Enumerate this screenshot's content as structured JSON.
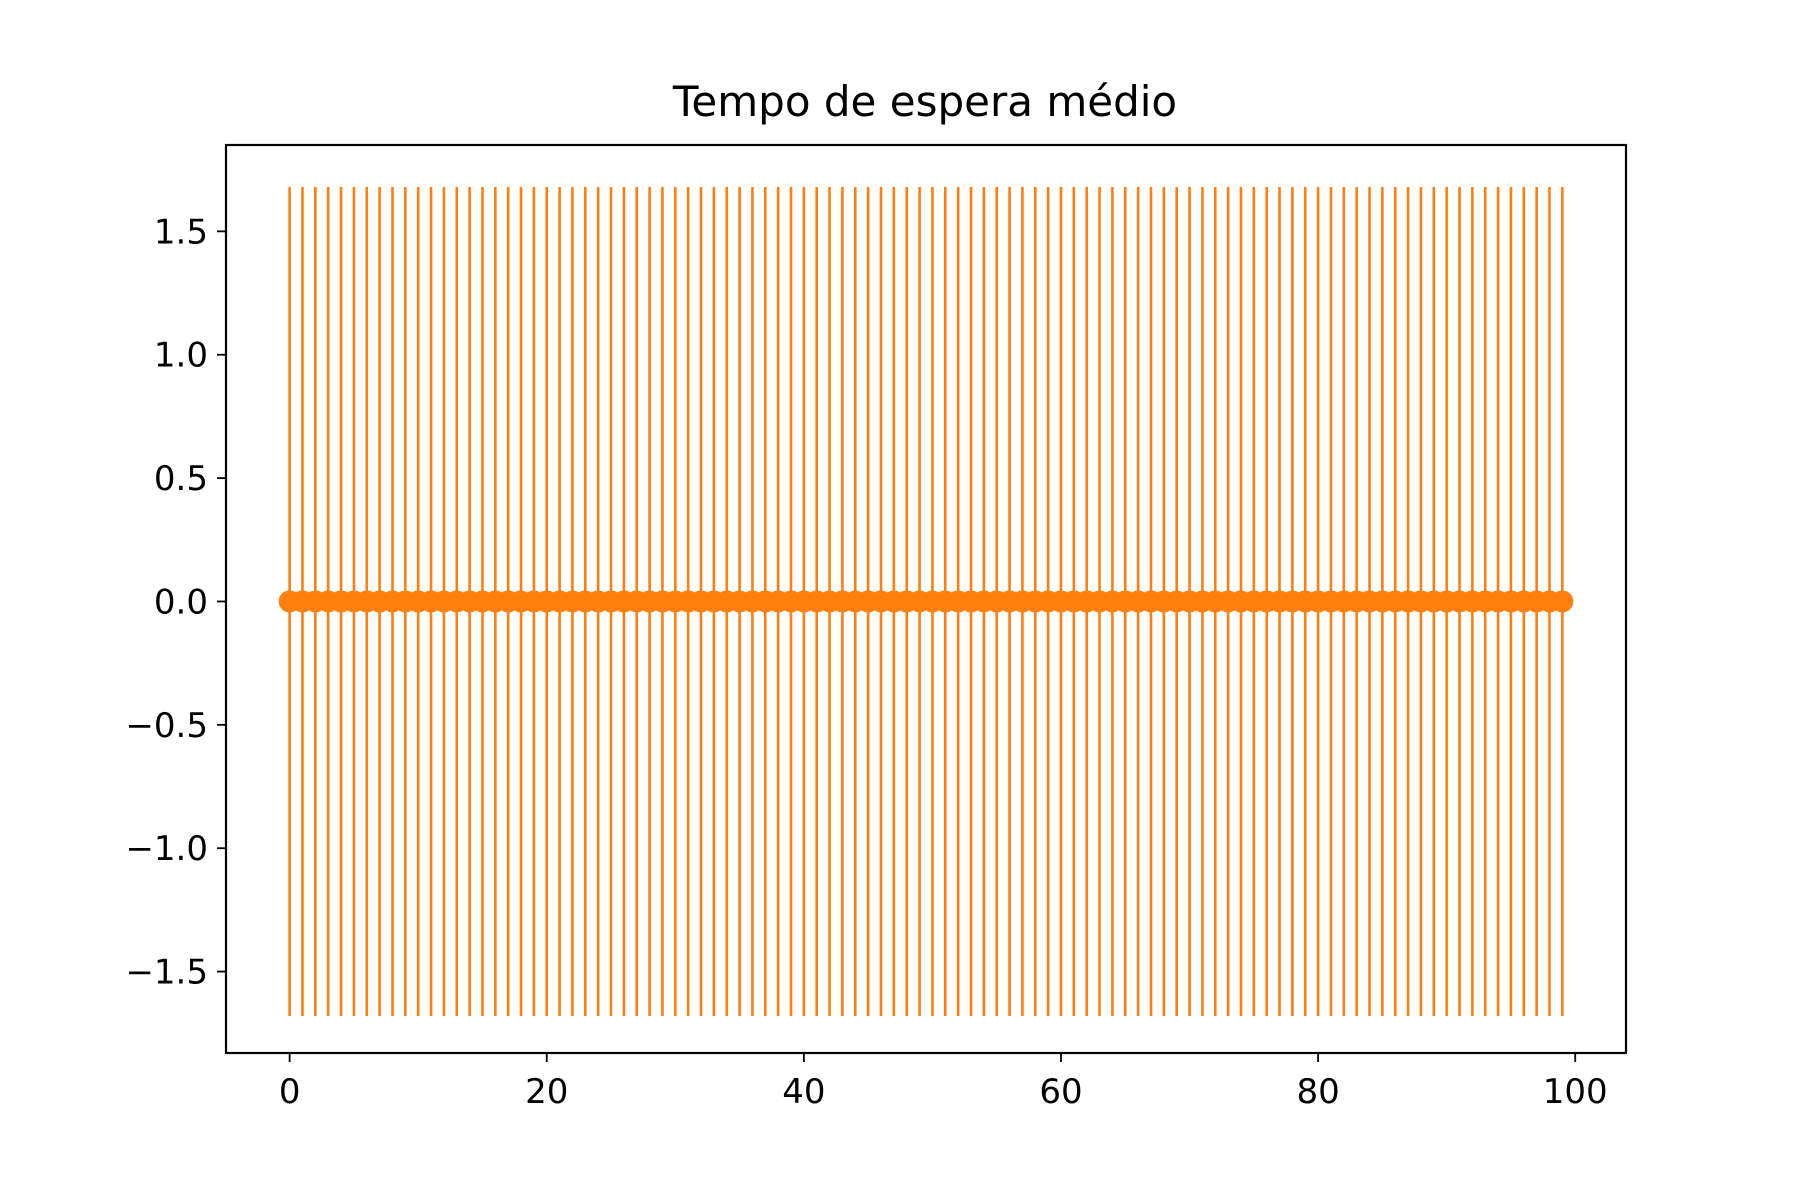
{
  "chart_data": {
    "type": "errorbar",
    "title": "Tempo de espera médio",
    "xlabel": "",
    "ylabel": "",
    "x": [
      0,
      1,
      2,
      3,
      4,
      5,
      6,
      7,
      8,
      9,
      10,
      11,
      12,
      13,
      14,
      15,
      16,
      17,
      18,
      19,
      20,
      21,
      22,
      23,
      24,
      25,
      26,
      27,
      28,
      29,
      30,
      31,
      32,
      33,
      34,
      35,
      36,
      37,
      38,
      39,
      40,
      41,
      42,
      43,
      44,
      45,
      46,
      47,
      48,
      49,
      50,
      51,
      52,
      53,
      54,
      55,
      56,
      57,
      58,
      59,
      60,
      61,
      62,
      63,
      64,
      65,
      66,
      67,
      68,
      69,
      70,
      71,
      72,
      73,
      74,
      75,
      76,
      77,
      78,
      79,
      80,
      81,
      82,
      83,
      84,
      85,
      86,
      87,
      88,
      89,
      90,
      91,
      92,
      93,
      94,
      95,
      96,
      97,
      98,
      99
    ],
    "y_value": 0.0,
    "error": 1.68,
    "xlim": [
      -4.95,
      103.95
    ],
    "ylim": [
      -1.83,
      1.85
    ],
    "x_ticks": [
      0,
      20,
      40,
      60,
      80,
      100
    ],
    "x_tick_labels": [
      "0",
      "20",
      "40",
      "60",
      "80",
      "100"
    ],
    "y_ticks": [
      -1.5,
      -1.0,
      -0.5,
      0.0,
      0.5,
      1.0,
      1.5
    ],
    "y_tick_labels": [
      "−1.5",
      "−1.0",
      "−0.5",
      "0.0",
      "0.5",
      "1.0",
      "1.5"
    ],
    "grid": false,
    "color": "#ff7f0e"
  }
}
